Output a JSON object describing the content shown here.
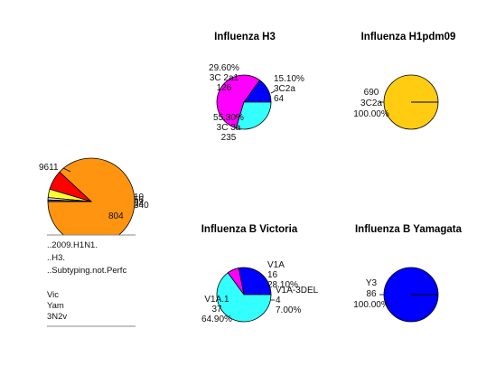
{
  "chart_data": [
    {
      "type": "pie",
      "title": "",
      "slices": [
        {
          "value": 9611,
          "label": "9611",
          "color": "#FF9410"
        },
        {
          "value": 804,
          "label": "804",
          "color": "#FF0000"
        },
        {
          "value": 340,
          "label": "340",
          "color": "#FFFF33"
        },
        {
          "value": 94,
          "label": "94",
          "color": "#F0F0F0"
        },
        {
          "value": 56,
          "label": "56",
          "color": "#6060FF"
        },
        {
          "value": 10,
          "label": "10",
          "color": "#A050FF"
        }
      ],
      "legend": {
        "placement": "below",
        "groups": [
          [
            "..2009.H1N1.",
            "..H3.",
            "..Subtyping.not.Perfc"
          ],
          [
            "Vic",
            "Yam",
            "3N2v"
          ]
        ]
      }
    },
    {
      "type": "pie",
      "title": "Influenza H3",
      "slices": [
        {
          "value": 64,
          "lines": [
            "15.10%",
            "3C2a",
            "64"
          ],
          "color": "#0000FF"
        },
        {
          "value": 235,
          "lines": [
            "55.30%",
            "3C 3a",
            "235"
          ],
          "color": "#FF00FF"
        },
        {
          "value": 126,
          "lines": [
            "29.60%",
            "3C 2a1",
            "126"
          ],
          "color": "#33FFFF"
        }
      ]
    },
    {
      "type": "pie",
      "title": "Influenza H1pdm09",
      "slices": [
        {
          "value": 690,
          "lines": [
            "690",
            "3C2a",
            "100.00%"
          ],
          "color": "#FFCC11"
        }
      ]
    },
    {
      "type": "pie",
      "title": "Influenza B Victoria",
      "slices": [
        {
          "value": 16,
          "lines": [
            "V1A",
            "16",
            "28.10%"
          ],
          "color": "#0000FF"
        },
        {
          "value": 4,
          "lines": [
            "V1A-3DEL",
            "4",
            "7.00%"
          ],
          "color": "#FF00FF"
        },
        {
          "value": 37,
          "lines": [
            "V1A.1",
            "37",
            "64.90%"
          ],
          "color": "#33FFFF"
        }
      ]
    },
    {
      "type": "pie",
      "title": "Influenza B Yamagata",
      "slices": [
        {
          "value": 86,
          "lines": [
            "Y3",
            "86",
            "100.00%"
          ],
          "color": "#0000FF"
        }
      ]
    }
  ]
}
